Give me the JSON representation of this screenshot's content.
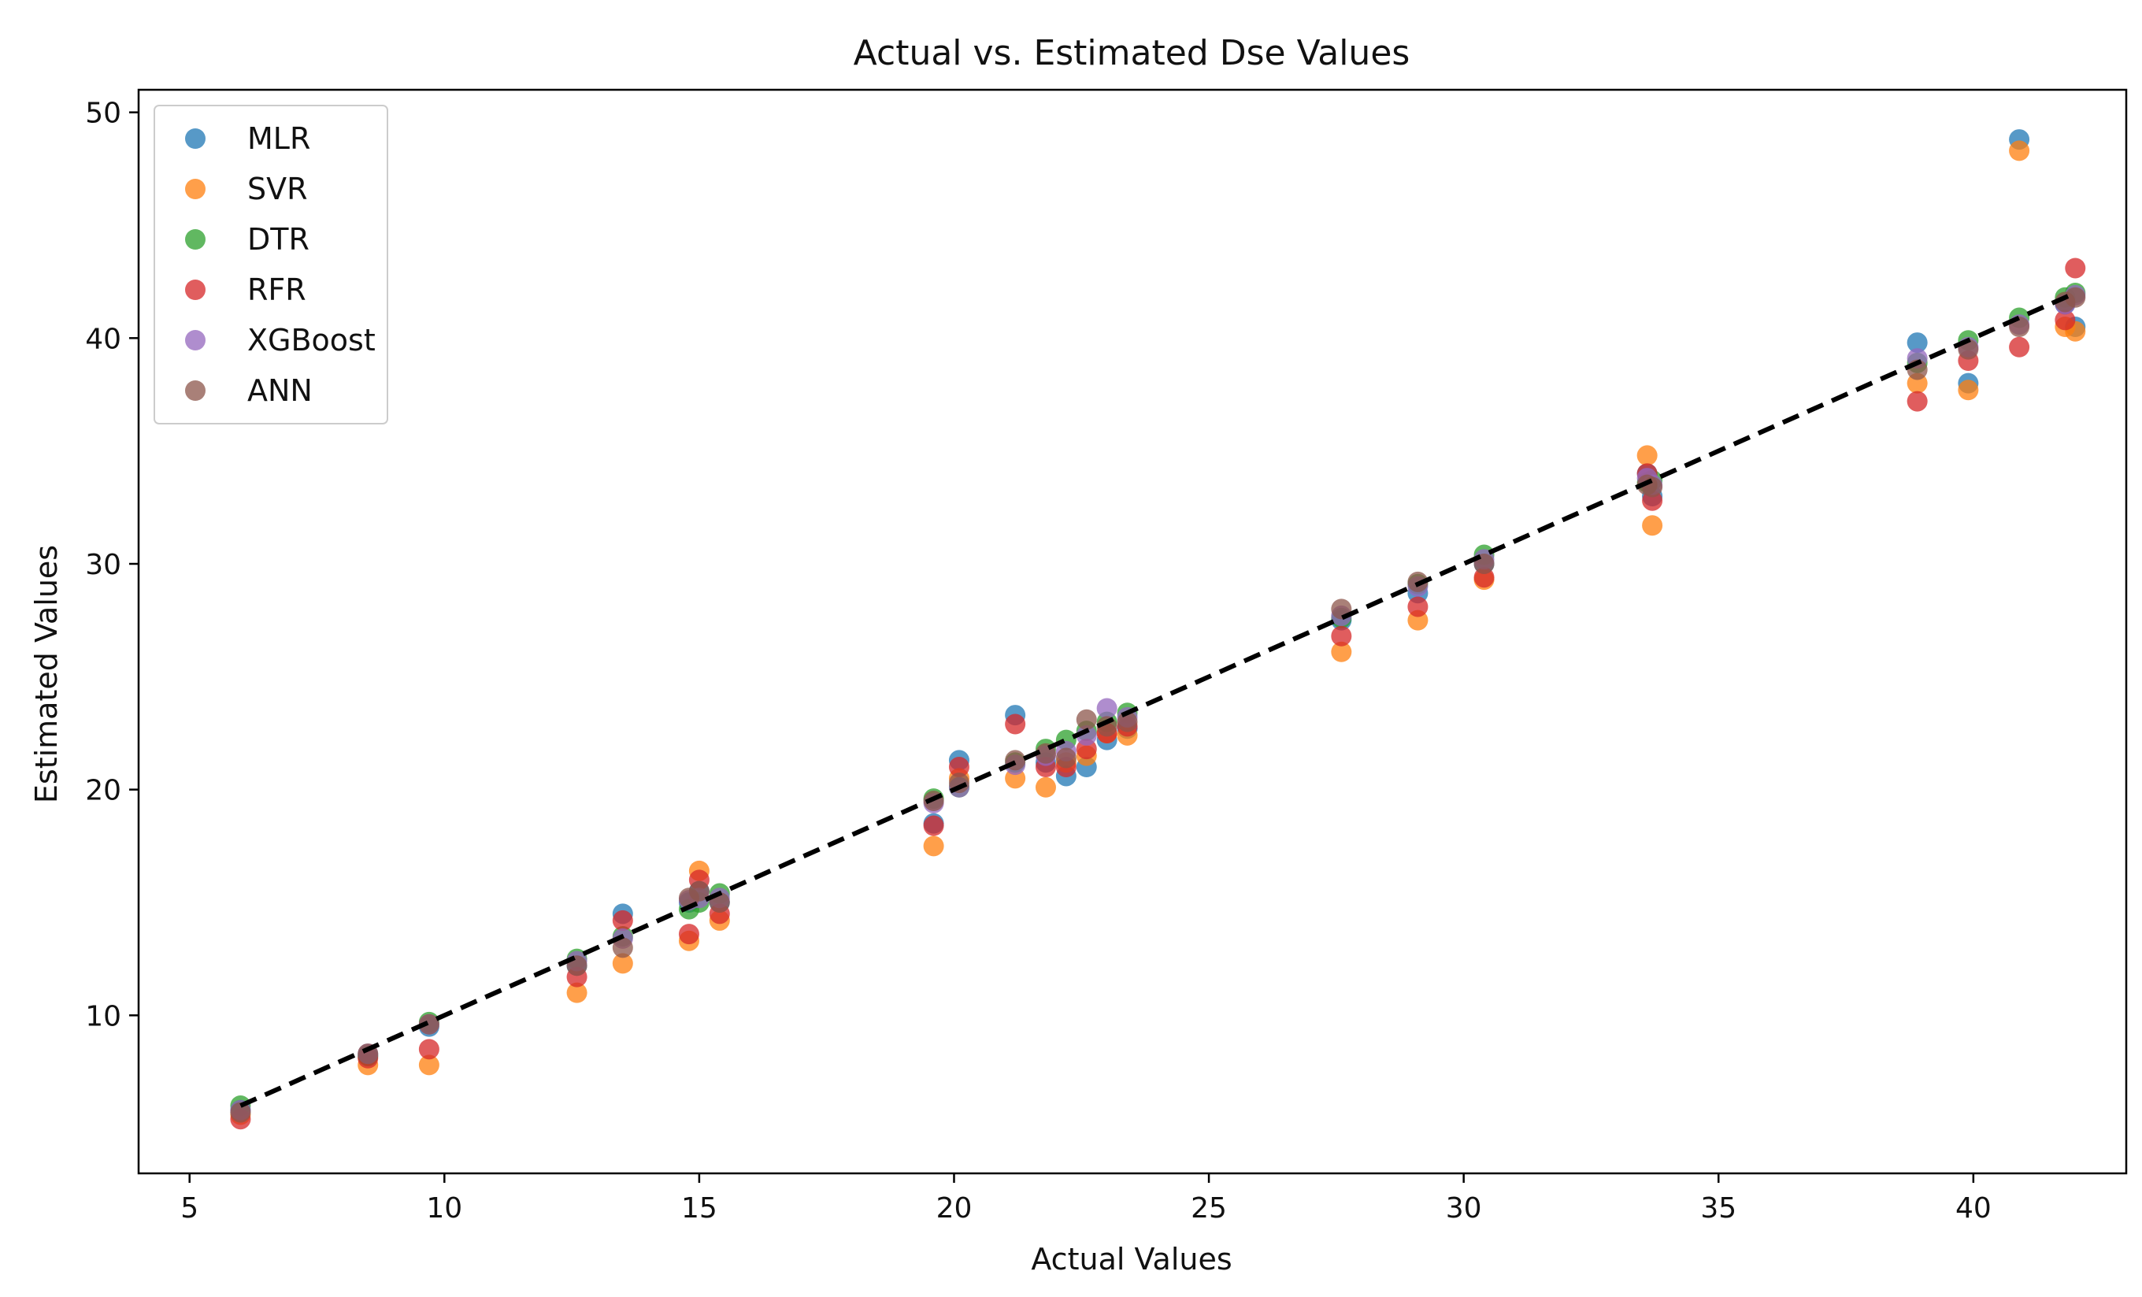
{
  "chart_data": {
    "type": "scatter",
    "title": "Actual vs. Estimated Dse Values",
    "xlabel": "Actual Values",
    "ylabel": "Estimated Values",
    "xlim": [
      4.0,
      43.0
    ],
    "ylim": [
      3.0,
      51.0
    ],
    "xticks": [
      5,
      10,
      15,
      20,
      25,
      30,
      35,
      40
    ],
    "yticks": [
      10,
      20,
      30,
      40,
      50
    ],
    "grid": false,
    "legend_position": "top-left",
    "reference_line": {
      "style": "dashed",
      "color": "#000000",
      "x": [
        6,
        42
      ],
      "y": [
        6,
        42
      ]
    },
    "series": [
      {
        "name": "MLR",
        "color": "#1f77b4",
        "x": [
          6,
          8.5,
          9.7,
          12.6,
          13.5,
          14.8,
          15.0,
          15.4,
          19.6,
          20.1,
          21.2,
          21.8,
          22.2,
          22.6,
          23.0,
          23.4,
          27.6,
          29.1,
          30.4,
          33.6,
          33.7,
          38.9,
          39.9,
          40.9,
          41.8,
          42.0
        ],
        "y": [
          5.8,
          8.2,
          9.5,
          12.2,
          14.5,
          15.0,
          15.5,
          15.0,
          18.5,
          21.3,
          23.3,
          21.2,
          20.6,
          21.0,
          22.2,
          22.7,
          27.5,
          28.7,
          30.0,
          34.0,
          33.0,
          39.8,
          38.0,
          48.8,
          41.5,
          40.5
        ]
      },
      {
        "name": "SVR",
        "color": "#ff7f0e",
        "x": [
          6,
          8.5,
          9.7,
          12.6,
          13.5,
          14.8,
          15.0,
          15.4,
          19.6,
          20.1,
          21.2,
          21.8,
          22.2,
          22.6,
          23.0,
          23.4,
          27.6,
          29.1,
          30.4,
          33.6,
          33.7,
          38.9,
          39.9,
          40.9,
          41.8,
          42.0
        ],
        "y": [
          5.6,
          7.8,
          7.8,
          11.0,
          12.3,
          13.3,
          16.4,
          14.2,
          17.5,
          20.5,
          20.5,
          20.1,
          21.2,
          21.5,
          22.5,
          22.4,
          26.1,
          27.5,
          29.3,
          34.8,
          31.7,
          38.0,
          37.7,
          48.3,
          40.5,
          40.3
        ]
      },
      {
        "name": "DTR",
        "color": "#2ca02c",
        "x": [
          6,
          8.5,
          9.7,
          12.6,
          13.5,
          14.8,
          15.0,
          15.4,
          19.6,
          20.1,
          21.2,
          21.8,
          22.2,
          22.6,
          23.0,
          23.4,
          27.6,
          29.1,
          30.4,
          33.6,
          33.7,
          38.9,
          39.9,
          40.9,
          41.8,
          42.0
        ],
        "y": [
          6.0,
          8.2,
          9.7,
          12.5,
          13.5,
          14.7,
          15.0,
          15.4,
          19.6,
          20.1,
          21.2,
          21.8,
          22.2,
          22.6,
          23.0,
          23.4,
          27.6,
          29.1,
          30.4,
          33.6,
          33.7,
          38.9,
          39.9,
          40.9,
          41.8,
          42.0
        ]
      },
      {
        "name": "RFR",
        "color": "#d62728",
        "x": [
          6,
          8.5,
          9.7,
          12.6,
          13.5,
          14.8,
          15.0,
          15.4,
          19.6,
          20.1,
          21.2,
          21.8,
          22.2,
          22.6,
          23.0,
          23.4,
          27.6,
          29.1,
          30.4,
          33.6,
          33.7,
          38.9,
          39.9,
          40.9,
          41.8,
          42.0
        ],
        "y": [
          5.4,
          8.1,
          8.5,
          11.7,
          14.2,
          13.6,
          16.0,
          14.5,
          18.4,
          21.0,
          22.9,
          21.0,
          21.0,
          21.8,
          22.5,
          22.8,
          26.8,
          28.1,
          29.4,
          34.0,
          32.8,
          37.2,
          39.0,
          39.6,
          40.8,
          43.1
        ]
      },
      {
        "name": "XGBoost",
        "color": "#9467bd",
        "x": [
          6,
          8.5,
          9.7,
          12.6,
          13.5,
          14.8,
          15.0,
          15.4,
          19.6,
          20.1,
          21.2,
          21.8,
          22.2,
          22.6,
          23.0,
          23.4,
          27.6,
          29.1,
          30.4,
          33.6,
          33.7,
          38.9,
          39.9,
          40.9,
          41.8,
          42.0
        ],
        "y": [
          5.8,
          8.3,
          9.6,
          12.4,
          13.4,
          15.1,
          15.2,
          15.2,
          19.4,
          20.1,
          21.1,
          21.5,
          21.7,
          22.4,
          23.6,
          23.2,
          27.7,
          29.0,
          30.2,
          33.8,
          33.5,
          39.1,
          39.6,
          40.6,
          41.5,
          41.9
        ]
      },
      {
        "name": "ANN",
        "color": "#8c564b",
        "x": [
          6,
          8.5,
          9.7,
          12.6,
          13.5,
          14.8,
          15.0,
          15.4,
          19.6,
          20.1,
          21.2,
          21.8,
          22.2,
          22.6,
          23.0,
          23.4,
          27.6,
          29.1,
          30.4,
          33.6,
          33.7,
          38.9,
          39.9,
          40.9,
          41.8,
          42.0
        ],
        "y": [
          5.7,
          8.3,
          9.6,
          12.2,
          13.0,
          15.2,
          15.5,
          15.0,
          19.5,
          20.3,
          21.3,
          21.6,
          21.4,
          23.1,
          22.8,
          23.0,
          28.0,
          29.2,
          30.0,
          33.5,
          33.4,
          38.6,
          39.5,
          40.5,
          41.6,
          41.8
        ]
      }
    ]
  }
}
